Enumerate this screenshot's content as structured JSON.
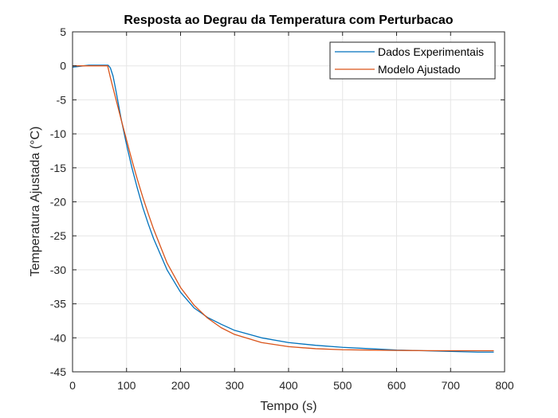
{
  "chart_data": {
    "type": "line",
    "title": "Resposta ao Degrau da Temperatura com Perturbacao",
    "xlabel": "Tempo (s)",
    "ylabel": "Temperatura Ajustada (°C)",
    "xlim": [
      0,
      800
    ],
    "ylim": [
      -45,
      5
    ],
    "xticks": [
      0,
      100,
      200,
      300,
      400,
      500,
      600,
      700,
      800
    ],
    "yticks": [
      5,
      0,
      -5,
      -10,
      -15,
      -20,
      -25,
      -30,
      -35,
      -40,
      -45
    ],
    "grid": true,
    "legend_position": "top-right",
    "series": [
      {
        "name": "Dados Experimentais",
        "color": "#0072BD",
        "x": [
          0,
          10,
          20,
          30,
          40,
          50,
          60,
          66,
          70,
          75,
          80,
          90,
          100,
          110,
          120,
          130,
          140,
          150,
          175,
          200,
          225,
          250,
          275,
          300,
          350,
          400,
          450,
          500,
          550,
          600,
          650,
          700,
          750,
          780
        ],
        "y": [
          -0.2,
          -0.1,
          0.0,
          0.1,
          0.1,
          0.1,
          0.1,
          0.1,
          -0.3,
          -1.5,
          -3.5,
          -7.8,
          -11.6,
          -15.0,
          -18.0,
          -20.8,
          -23.2,
          -25.4,
          -30.0,
          -33.3,
          -35.6,
          -37.0,
          -38.0,
          -38.9,
          -40.0,
          -40.7,
          -41.1,
          -41.4,
          -41.6,
          -41.8,
          -41.9,
          -42.0,
          -42.1,
          -42.1
        ]
      },
      {
        "name": "Modelo Ajustado",
        "color": "#D95319",
        "x": [
          0,
          20,
          40,
          60,
          65,
          70,
          80,
          90,
          100,
          110,
          120,
          130,
          140,
          150,
          175,
          200,
          225,
          250,
          275,
          300,
          350,
          400,
          450,
          500,
          550,
          600,
          650,
          700,
          750,
          780
        ],
        "y": [
          0.0,
          0.0,
          0.0,
          0.0,
          0.0,
          -1.7,
          -4.8,
          -7.9,
          -10.9,
          -13.9,
          -16.7,
          -19.3,
          -21.7,
          -24.0,
          -29.0,
          -32.6,
          -35.2,
          -37.1,
          -38.5,
          -39.5,
          -40.7,
          -41.3,
          -41.6,
          -41.75,
          -41.8,
          -41.85,
          -41.88,
          -41.9,
          -41.9,
          -41.9
        ]
      }
    ]
  }
}
